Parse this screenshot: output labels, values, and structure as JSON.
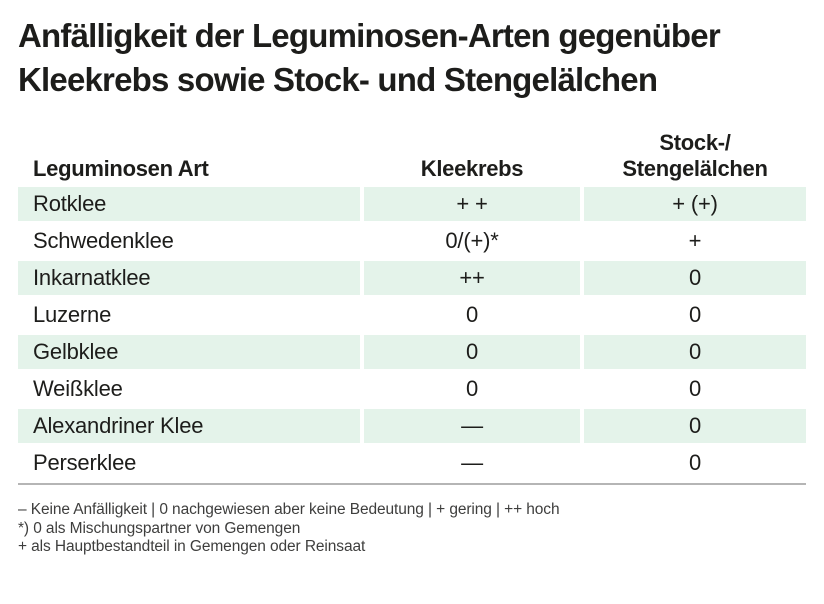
{
  "title": "Anfälligkeit der Leguminosen-Arten gegenüber\nKleekrebs sowie Stock- und Stengelälchen",
  "colors": {
    "row_stripe_green": "#e4f3ea",
    "text": "#1d1d1b",
    "footer_text": "#3e3e3d",
    "rule": "#b5b5b5"
  },
  "table": {
    "columns": {
      "species": "Leguminosen Art",
      "kleekrebs": "Kleekrebs",
      "stock": "Stock-/\nStengelälchen"
    },
    "rows": [
      {
        "name": "Rotklee",
        "kleekrebs": "+ +",
        "stock": "+ (+)"
      },
      {
        "name": "Schwedenklee",
        "kleekrebs": "0/(+)*",
        "stock": "+"
      },
      {
        "name": "Inkarnatklee",
        "kleekrebs": "++",
        "stock": "0"
      },
      {
        "name": "Luzerne",
        "kleekrebs": "0",
        "stock": "0"
      },
      {
        "name": "Gelbklee",
        "kleekrebs": "0",
        "stock": "0"
      },
      {
        "name": "Weißklee",
        "kleekrebs": "0",
        "stock": "0"
      },
      {
        "name": "Alexandriner Klee",
        "kleekrebs": "—",
        "stock": "0"
      },
      {
        "name": "Perserklee",
        "kleekrebs": "—",
        "stock": "0"
      }
    ]
  },
  "footer": {
    "lines": [
      "– Keine Anfälligkeit | 0 nachgewiesen aber keine Bedeutung | + gering | ++ hoch",
      "*) 0 als Mischungspartner von Gemengen",
      "+ als Hauptbestandteil in Gemengen oder Reinsaat"
    ]
  }
}
